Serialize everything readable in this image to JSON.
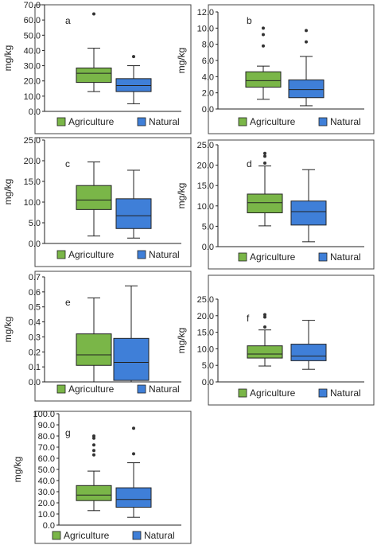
{
  "colors": {
    "agriculture": "#7ab648",
    "natural": "#3f7fd8",
    "stroke": "#222222",
    "frame": "#444444"
  },
  "chart_data": [
    {
      "type": "boxplot",
      "panel_label": "a",
      "ylabel": "mg/kg",
      "ylim": [
        0,
        70
      ],
      "ticks": [
        "0.0",
        "10.0",
        "20.0",
        "30.0",
        "40.0",
        "50.0",
        "60.0",
        "70.0"
      ],
      "legend": [
        "Agriculture",
        "Natural"
      ],
      "legend_position": "bottom",
      "grid": false,
      "series": [
        {
          "name": "Agriculture",
          "min": 13,
          "q1": 19,
          "median": 25,
          "q3": 28.5,
          "max": 41.5,
          "outliers": [
            64
          ]
        },
        {
          "name": "Natural",
          "min": 5,
          "q1": 13,
          "median": 17,
          "q3": 21.5,
          "max": 30,
          "outliers": [
            36
          ]
        }
      ]
    },
    {
      "type": "boxplot",
      "panel_label": "b",
      "ylabel": "mg/kg",
      "ylim": [
        0,
        12
      ],
      "ticks": [
        "0.0",
        "2.0",
        "4.0",
        "6.0",
        "8.0",
        "10.0",
        "12.0"
      ],
      "legend": [
        "Agriculture",
        "Natural"
      ],
      "legend_position": "bottom",
      "grid": false,
      "series": [
        {
          "name": "Agriculture",
          "min": 1.2,
          "q1": 2.7,
          "median": 3.5,
          "q3": 4.6,
          "max": 5.3,
          "outliers": [
            7.8,
            9.2,
            10
          ]
        },
        {
          "name": "Natural",
          "min": 0.4,
          "q1": 1.4,
          "median": 2.4,
          "q3": 3.6,
          "max": 6.5,
          "outliers": [
            8.3,
            9.7
          ]
        }
      ]
    },
    {
      "type": "boxplot",
      "panel_label": "c",
      "ylabel": "mg/kg",
      "ylim": [
        0,
        25
      ],
      "ticks": [
        "0.0",
        "5.0",
        "10.0",
        "15.0",
        "20.0",
        "25.0"
      ],
      "legend": [
        "Agriculture",
        "Natural"
      ],
      "legend_position": "bottom",
      "grid": false,
      "series": [
        {
          "name": "Agriculture",
          "min": 1.8,
          "q1": 8.2,
          "median": 10.5,
          "q3": 14,
          "max": 19.7,
          "outliers": []
        },
        {
          "name": "Natural",
          "min": 1.3,
          "q1": 3.6,
          "median": 6.7,
          "q3": 10.8,
          "max": 17.7,
          "outliers": []
        }
      ]
    },
    {
      "type": "boxplot",
      "panel_label": "d",
      "ylabel": "mg/kg",
      "ylim": [
        0,
        25
      ],
      "ticks": [
        "0.0",
        "5.0",
        "10.0",
        "15.0",
        "20.0",
        "25.0"
      ],
      "legend": [
        "Agriculture",
        "Natural"
      ],
      "legend_position": "bottom",
      "grid": false,
      "series": [
        {
          "name": "Agriculture",
          "min": 5.1,
          "q1": 8.3,
          "median": 10.8,
          "q3": 12.9,
          "max": 19.8,
          "outliers": [
            20.5,
            22.2,
            22.9
          ]
        },
        {
          "name": "Natural",
          "min": 1.2,
          "q1": 5.3,
          "median": 8.6,
          "q3": 11.2,
          "max": 18.9,
          "outliers": []
        }
      ]
    },
    {
      "type": "boxplot",
      "panel_label": "e",
      "ylabel": "mg/kg",
      "ylim": [
        0,
        0.7
      ],
      "ticks": [
        "0.0",
        "0.1",
        "0.2",
        "0.3",
        "0.4",
        "0.5",
        "0.6",
        "0.7"
      ],
      "legend": [
        "Agriculture",
        "Natural"
      ],
      "legend_position": "bottom",
      "grid": false,
      "series": [
        {
          "name": "Agriculture",
          "min": 0.0,
          "q1": 0.11,
          "median": 0.18,
          "q3": 0.32,
          "max": 0.56,
          "outliers": []
        },
        {
          "name": "Natural",
          "min": 0.0,
          "q1": 0.01,
          "median": 0.13,
          "q3": 0.29,
          "max": 0.64,
          "outliers": []
        }
      ]
    },
    {
      "type": "boxplot",
      "panel_label": "f",
      "ylabel": "mg/kg",
      "ylim": [
        0,
        25
      ],
      "ticks": [
        "0.0",
        "5.0",
        "10.0",
        "15.0",
        "20.0",
        "25.0"
      ],
      "legend": [
        "Agriculture",
        "Natural"
      ],
      "legend_position": "bottom",
      "grid": false,
      "series": [
        {
          "name": "Agriculture",
          "min": 4.8,
          "q1": 7.2,
          "median": 8.4,
          "q3": 10.9,
          "max": 15.7,
          "outliers": [
            16.6,
            19.6,
            20.3
          ]
        },
        {
          "name": "Natural",
          "min": 3.8,
          "q1": 6.4,
          "median": 7.8,
          "q3": 11.4,
          "max": 18.6,
          "outliers": []
        }
      ]
    },
    {
      "type": "boxplot",
      "panel_label": "g",
      "ylabel": "mg/kg",
      "ylim": [
        0,
        100
      ],
      "ticks": [
        "0.0",
        "10.0",
        "20.0",
        "30.0",
        "40.0",
        "50.0",
        "60.0",
        "70.0",
        "80.0",
        "90.0",
        "100.0"
      ],
      "legend": [
        "Agriculture",
        "Natural"
      ],
      "legend_position": "bottom",
      "grid": false,
      "series": [
        {
          "name": "Agriculture",
          "min": 13,
          "q1": 22,
          "median": 27,
          "q3": 35.5,
          "max": 48.5,
          "outliers": [
            63,
            67,
            72,
            78,
            80
          ]
        },
        {
          "name": "Natural",
          "min": 7,
          "q1": 16,
          "median": 23,
          "q3": 33.5,
          "max": 56,
          "outliers": [
            64,
            87
          ]
        }
      ]
    }
  ]
}
